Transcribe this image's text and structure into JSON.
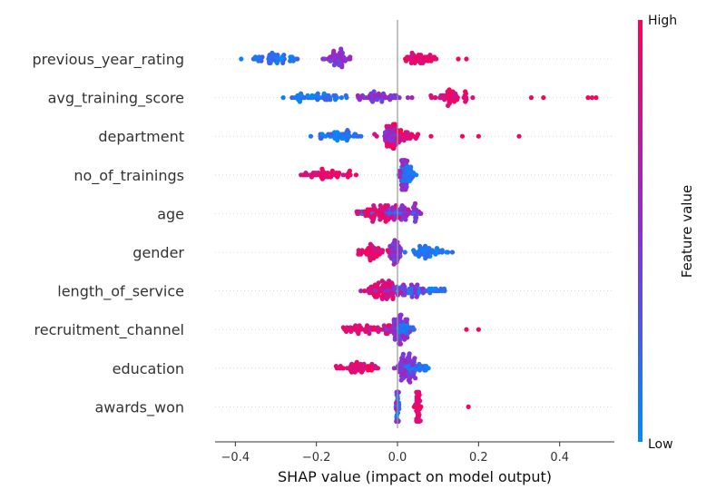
{
  "chart_data": {
    "type": "scatter",
    "subtype": "beeswarm",
    "title": "",
    "xlabel": "SHAP value (impact on model output)",
    "xlim": [
      -0.45,
      0.535
    ],
    "xticks": [
      -0.4,
      -0.2,
      0.0,
      0.2,
      0.4
    ],
    "xtick_labels": [
      "−0.4",
      "−0.2",
      "0.0",
      "0.2",
      "0.4"
    ],
    "zero_line": true,
    "grid": false,
    "colorbar": {
      "title": "Feature value",
      "high_label": "High",
      "low_label": "Low",
      "colors": [
        "#008bfb",
        "#8a2fd6",
        "#ff0052"
      ]
    },
    "features": [
      {
        "name": "previous_year_rating",
        "high_min": 0.0,
        "high_max": 0.12,
        "mid_min": -0.2,
        "mid_max": -0.1,
        "low_min": -0.41,
        "low_max": -0.2,
        "tail": [
          0.15,
          0.17
        ]
      },
      {
        "name": "avg_training_score",
        "high_min": 0.05,
        "high_max": 0.21,
        "mid_min": -0.12,
        "mid_max": 0.05,
        "low_min": -0.32,
        "low_max": -0.1,
        "tail": [
          0.33,
          0.36,
          0.47,
          0.48,
          0.49
        ]
      },
      {
        "name": "department",
        "high_min": -0.08,
        "high_max": 0.1,
        "mid_min": -0.05,
        "mid_max": 0.02,
        "low_min": -0.23,
        "low_max": -0.05,
        "tail": [
          0.16,
          0.2,
          0.3
        ]
      },
      {
        "name": "no_of_trainings",
        "high_min": -0.27,
        "high_max": -0.07,
        "mid_min": 0.0,
        "mid_max": 0.03,
        "low_min": 0.0,
        "low_max": 0.05,
        "tail": []
      },
      {
        "name": "age",
        "high_min": -0.15,
        "high_max": 0.04,
        "mid_min": -0.06,
        "mid_max": 0.08,
        "low_min": -0.15,
        "low_max": 0.1,
        "tail": []
      },
      {
        "name": "gender",
        "high_min": -0.12,
        "high_max": 0.0,
        "mid_min": -0.03,
        "mid_max": 0.02,
        "low_min": 0.0,
        "low_max": 0.15,
        "tail": []
      },
      {
        "name": "length_of_service",
        "high_min": -0.1,
        "high_max": 0.02,
        "mid_min": -0.11,
        "mid_max": 0.08,
        "low_min": -0.05,
        "low_max": 0.15,
        "tail": []
      },
      {
        "name": "recruitment_channel",
        "high_min": -0.16,
        "high_max": 0.0,
        "mid_min": -0.04,
        "mid_max": 0.04,
        "low_min": -0.02,
        "low_max": 0.05,
        "tail": [
          0.17,
          0.2
        ]
      },
      {
        "name": "education",
        "high_min": -0.19,
        "high_max": 0.0,
        "mid_min": -0.02,
        "mid_max": 0.06,
        "low_min": -0.02,
        "low_max": 0.1,
        "tail": []
      },
      {
        "name": "awards_won",
        "high_min": 0.04,
        "high_max": 0.06,
        "mid_min": -0.004,
        "mid_max": 0.004,
        "low_min": -0.006,
        "low_max": 0.006,
        "tail": [
          0.175
        ]
      }
    ]
  }
}
